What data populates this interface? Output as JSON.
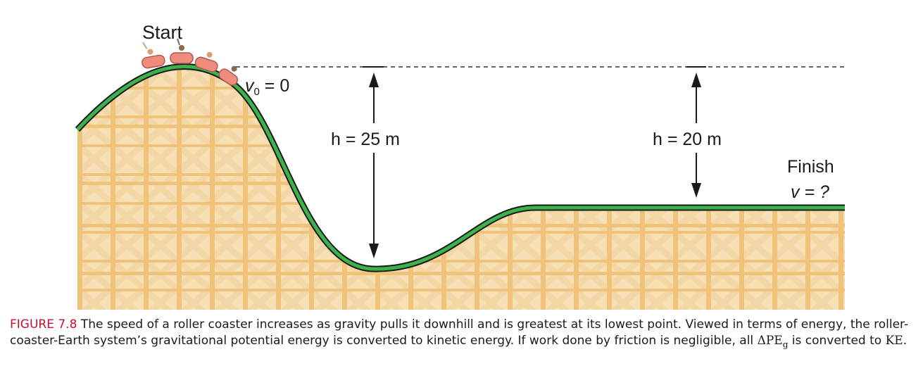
{
  "figure": {
    "labels": {
      "start": "Start",
      "v0_var": "v",
      "v0_sub": "0",
      "v0_rest": " = 0",
      "h1": "h = 25 m",
      "h2": "h = 20 m",
      "finish": "Finish",
      "v_final": "v = ?"
    },
    "colors": {
      "track": "#3cb34a",
      "track_edge": "#1a1a1a",
      "scaffold": "#f0c27a",
      "scaffold_bg": "#f7e0b5",
      "cart": "#f08c7e",
      "dashed": "#333333",
      "caption_label": "#c8102e"
    }
  },
  "caption": {
    "figure_number": "FIGURE 7.8",
    "text_1": " The speed of a roller coaster increases as gravity pulls it downhill and is greatest at its lowest point. Viewed in terms of energy, the roller-coaster-Earth system’s gravitational potential energy is converted to kinetic energy. If work done by friction is negligible, all ",
    "delta_pe": "ΔPE",
    "delta_pe_sub": "g",
    "text_2": " is converted to ",
    "ke": "KE",
    "text_3": "."
  }
}
